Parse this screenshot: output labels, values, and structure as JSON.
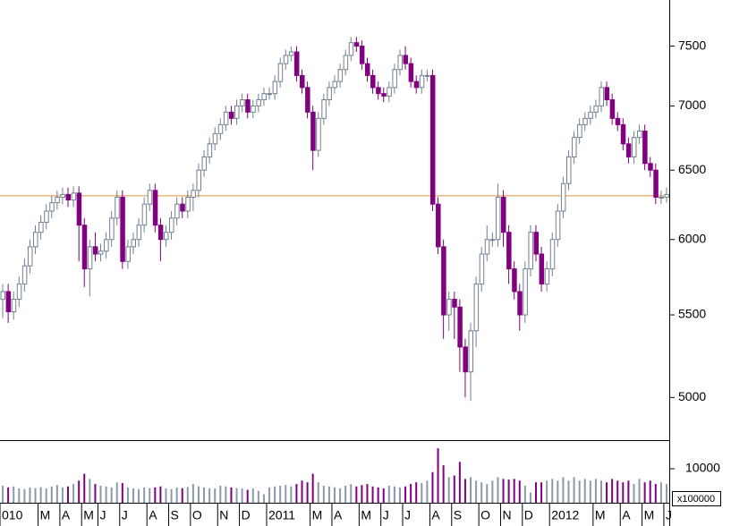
{
  "chart_data": {
    "type": "candlestick",
    "categories": [
      "010",
      null,
      null,
      null,
      null,
      null,
      null,
      "M",
      null,
      null,
      null,
      "A",
      null,
      null,
      null,
      "M",
      null,
      null,
      "J",
      null,
      null,
      null,
      "J",
      null,
      null,
      null,
      null,
      "A",
      null,
      null,
      null,
      "S",
      null,
      null,
      null,
      "O",
      null,
      null,
      null,
      null,
      "N",
      null,
      null,
      null,
      "D",
      null,
      null,
      null,
      null,
      "2011",
      null,
      null,
      null,
      null,
      null,
      null,
      null,
      "M",
      null,
      null,
      null,
      "A",
      null,
      null,
      null,
      null,
      "M",
      null,
      null,
      null,
      "J",
      null,
      null,
      null,
      "J",
      null,
      null,
      null,
      null,
      "A",
      null,
      null,
      null,
      "S",
      null,
      null,
      null,
      null,
      "O",
      null,
      null,
      null,
      "N",
      null,
      null,
      null,
      "D",
      null,
      null,
      null,
      null,
      "2012",
      null,
      null,
      null,
      null,
      null,
      null,
      null,
      "M",
      null,
      null,
      null,
      null,
      "A",
      null,
      null,
      null,
      "M",
      null,
      null,
      null,
      "J"
    ],
    "open": [
      5600,
      5650,
      5520,
      5600,
      5700,
      5820,
      5950,
      6050,
      6120,
      6200,
      6260,
      6300,
      6320,
      6280,
      6330,
      6100,
      5800,
      5950,
      5900,
      5920,
      6000,
      6150,
      6300,
      5850,
      5950,
      6000,
      6100,
      6250,
      6350,
      6100,
      6000,
      6050,
      6150,
      6250,
      6200,
      6300,
      6350,
      6500,
      6600,
      6700,
      6780,
      6850,
      6950,
      6900,
      7000,
      7050,
      6950,
      7000,
      7050,
      7100,
      7100,
      7200,
      7350,
      7420,
      7450,
      7250,
      7150,
      6950,
      6650,
      6900,
      7050,
      7150,
      7200,
      7300,
      7420,
      7530,
      7500,
      7350,
      7250,
      7150,
      7100,
      7080,
      7150,
      7300,
      7420,
      7350,
      7200,
      7150,
      7250,
      7250,
      6250,
      5950,
      5500,
      5600,
      5550,
      5300,
      5150,
      5400,
      5700,
      5900,
      6000,
      6000,
      6300,
      6050,
      5800,
      5650,
      5500,
      5800,
      6050,
      5900,
      5700,
      5800,
      6000,
      6200,
      6400,
      6600,
      6750,
      6850,
      6900,
      6950,
      7000,
      7150,
      7050,
      6900,
      6850,
      6700,
      6600,
      6750,
      6800,
      6550,
      6500,
      6300,
      6300
    ],
    "high": [
      5700,
      5700,
      5650,
      5750,
      5870,
      6000,
      6100,
      6170,
      6250,
      6310,
      6350,
      6370,
      6370,
      6380,
      6380,
      6150,
      6000,
      6050,
      5970,
      6050,
      6200,
      6350,
      6350,
      6000,
      6050,
      6150,
      6300,
      6400,
      6400,
      6150,
      6100,
      6200,
      6300,
      6300,
      6350,
      6400,
      6550,
      6650,
      6750,
      6830,
      6900,
      7000,
      7000,
      7050,
      7100,
      7100,
      7050,
      7100,
      7150,
      7150,
      7250,
      7400,
      7470,
      7500,
      7500,
      7300,
      7200,
      7000,
      6950,
      7100,
      7200,
      7250,
      7350,
      7470,
      7580,
      7580,
      7550,
      7400,
      7300,
      7200,
      7150,
      7200,
      7350,
      7470,
      7500,
      7400,
      7250,
      7300,
      7300,
      7300,
      6300,
      6000,
      5650,
      5650,
      5600,
      5350,
      5450,
      5750,
      5950,
      6100,
      6050,
      6400,
      6350,
      6100,
      5850,
      5700,
      5850,
      6100,
      6100,
      5950,
      5850,
      6050,
      6250,
      6450,
      6650,
      6800,
      6900,
      6950,
      7000,
      7050,
      7200,
      7200,
      7100,
      6950,
      6900,
      6750,
      6800,
      6850,
      6850,
      6600,
      6550,
      6350,
      6370
    ],
    "low": [
      5480,
      5450,
      5470,
      5550,
      5650,
      5770,
      5900,
      6000,
      6070,
      6150,
      6210,
      6250,
      6230,
      6230,
      5850,
      5680,
      5620,
      5850,
      5850,
      5870,
      5950,
      6100,
      5800,
      5800,
      5900,
      5950,
      6050,
      6200,
      6050,
      5850,
      5950,
      6000,
      6100,
      6150,
      6150,
      6200,
      6300,
      6450,
      6550,
      6650,
      6730,
      6800,
      6850,
      6850,
      6950,
      6900,
      6900,
      6950,
      7000,
      7050,
      7050,
      7150,
      7300,
      7370,
      7200,
      7100,
      6900,
      6500,
      6600,
      6850,
      7000,
      7100,
      7150,
      7250,
      7370,
      7450,
      7300,
      7200,
      7100,
      7050,
      7030,
      7030,
      7100,
      7250,
      7300,
      7150,
      7100,
      7100,
      7200,
      6200,
      5900,
      5350,
      5400,
      5350,
      5150,
      5000,
      4980,
      5300,
      5650,
      5850,
      5950,
      5950,
      5950,
      5700,
      5600,
      5400,
      5450,
      5750,
      5850,
      5650,
      5650,
      5750,
      5950,
      6150,
      6350,
      6550,
      6700,
      6800,
      6850,
      6900,
      6950,
      7000,
      6850,
      6800,
      6650,
      6550,
      6550,
      6700,
      6500,
      6450,
      6250,
      6250,
      6260
    ],
    "close": [
      5650,
      5520,
      5600,
      5700,
      5820,
      5950,
      6050,
      6120,
      6200,
      6260,
      6300,
      6320,
      6280,
      6330,
      6100,
      5800,
      5950,
      5900,
      5920,
      6000,
      6150,
      6300,
      5850,
      5950,
      6000,
      6100,
      6250,
      6350,
      6100,
      6000,
      6050,
      6150,
      6250,
      6200,
      6300,
      6350,
      6500,
      6600,
      6700,
      6780,
      6850,
      6950,
      6900,
      7000,
      7050,
      6950,
      7000,
      7050,
      7100,
      7100,
      7200,
      7350,
      7420,
      7450,
      7250,
      7150,
      6950,
      6650,
      6900,
      7050,
      7150,
      7200,
      7300,
      7420,
      7530,
      7500,
      7350,
      7250,
      7150,
      7100,
      7080,
      7150,
      7300,
      7420,
      7350,
      7200,
      7150,
      7250,
      7250,
      6250,
      5950,
      5500,
      5600,
      5550,
      5300,
      5150,
      5400,
      5700,
      5900,
      6000,
      6000,
      6300,
      6050,
      5800,
      5650,
      5500,
      5800,
      6050,
      5900,
      5700,
      5800,
      6000,
      6200,
      6400,
      6600,
      6750,
      6850,
      6900,
      6950,
      7000,
      7150,
      7050,
      6900,
      6850,
      6700,
      6600,
      6750,
      6800,
      6550,
      6500,
      6300,
      6300,
      6320
    ],
    "up_color": "#708090",
    "down_color": "#800080",
    "ylim": [
      4760,
      7910
    ],
    "ylog": true,
    "yticks": [
      5000,
      5500,
      6000,
      6500,
      7000,
      7500
    ],
    "hline": {
      "value": 6310,
      "color": "#e09040"
    },
    "volume": {
      "values": [
        5000,
        4500,
        4800,
        4200,
        4000,
        4500,
        4300,
        4600,
        4200,
        4800,
        5200,
        4500,
        4800,
        5500,
        6500,
        8500,
        7000,
        5500,
        5000,
        4800,
        4500,
        6000,
        5800,
        4500,
        4200,
        4000,
        4500,
        4300,
        4500,
        4800,
        4200,
        4000,
        4500,
        4300,
        4600,
        5500,
        4800,
        4500,
        4300,
        4200,
        5000,
        4800,
        4500,
        4300,
        4200,
        3800,
        4200,
        3500,
        2500,
        4500,
        4800,
        5000,
        5200,
        4800,
        5500,
        6500,
        6000,
        8500,
        6000,
        5000,
        4800,
        4500,
        4200,
        5000,
        5500,
        4800,
        5200,
        5500,
        4800,
        4500,
        4200,
        5000,
        4800,
        4500,
        4800,
        5500,
        6000,
        5800,
        6500,
        9000,
        16000,
        11000,
        7500,
        8000,
        12000,
        7000,
        7500,
        6500,
        6000,
        5500,
        6500,
        7500,
        7000,
        6800,
        7000,
        6500,
        5000,
        3000,
        6000,
        6000,
        6500,
        7000,
        6500,
        7500,
        6500,
        7500,
        6500,
        7000,
        6500,
        7000,
        6500,
        6000,
        7000,
        6500,
        6000,
        6500,
        5500,
        7000,
        6000,
        6500,
        5500,
        6000,
        5500
      ],
      "ylim": [
        0,
        18400
      ],
      "yticks": [
        10000
      ],
      "multiplier_label": "x100000"
    }
  }
}
